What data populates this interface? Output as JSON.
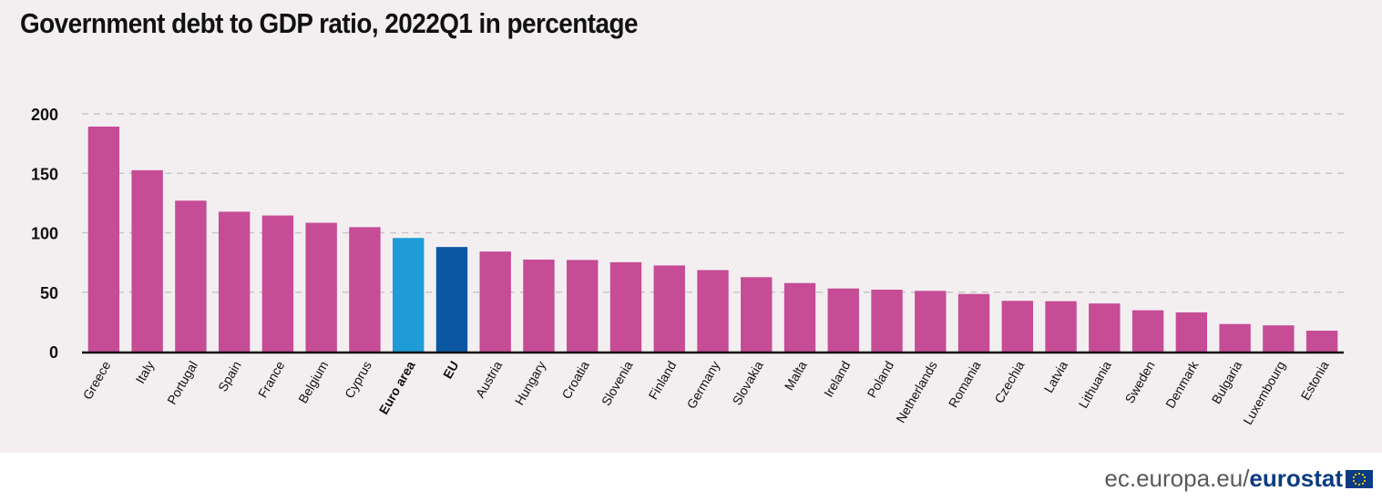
{
  "title": "Government debt to GDP ratio, 2022Q1 in percentage",
  "footer": {
    "domain_text": "ec.europa.eu/",
    "brand_text": "eurostat"
  },
  "colors": {
    "country": "#c64c96",
    "euro_area": "#1f9bd8",
    "eu": "#0b57a4",
    "grid": "#c9c4c7",
    "axis": "#111111"
  },
  "chart_data": {
    "type": "bar",
    "title": "Government debt to GDP ratio, 2022Q1 in percentage",
    "xlabel": "",
    "ylabel": "",
    "ylim": [
      0,
      200
    ],
    "yticks": [
      0,
      50,
      100,
      150,
      200
    ],
    "grid": true,
    "categories": [
      "Greece",
      "Italy",
      "Portugal",
      "Spain",
      "France",
      "Belgium",
      "Cyprus",
      "Euro area",
      "EU",
      "Austria",
      "Hungary",
      "Croatia",
      "Slovenia",
      "Finland",
      "Germany",
      "Slovakia",
      "Malta",
      "Ireland",
      "Poland",
      "Netherlands",
      "Romania",
      "Czechia",
      "Latvia",
      "Lithuania",
      "Sweden",
      "Denmark",
      "Bulgaria",
      "Luxembourg",
      "Estonia"
    ],
    "values": [
      189.3,
      152.6,
      127.0,
      117.7,
      114.5,
      108.4,
      104.7,
      95.6,
      88.0,
      84.2,
      77.4,
      77.1,
      75.2,
      72.5,
      68.6,
      62.6,
      57.7,
      53.1,
      52.1,
      51.1,
      48.5,
      42.7,
      42.4,
      40.5,
      34.8,
      33.0,
      23.2,
      22.1,
      17.6
    ],
    "highlight": {
      "Euro area": "euro_area",
      "EU": "eu"
    },
    "bold_categories": [
      "Euro area",
      "EU"
    ]
  }
}
